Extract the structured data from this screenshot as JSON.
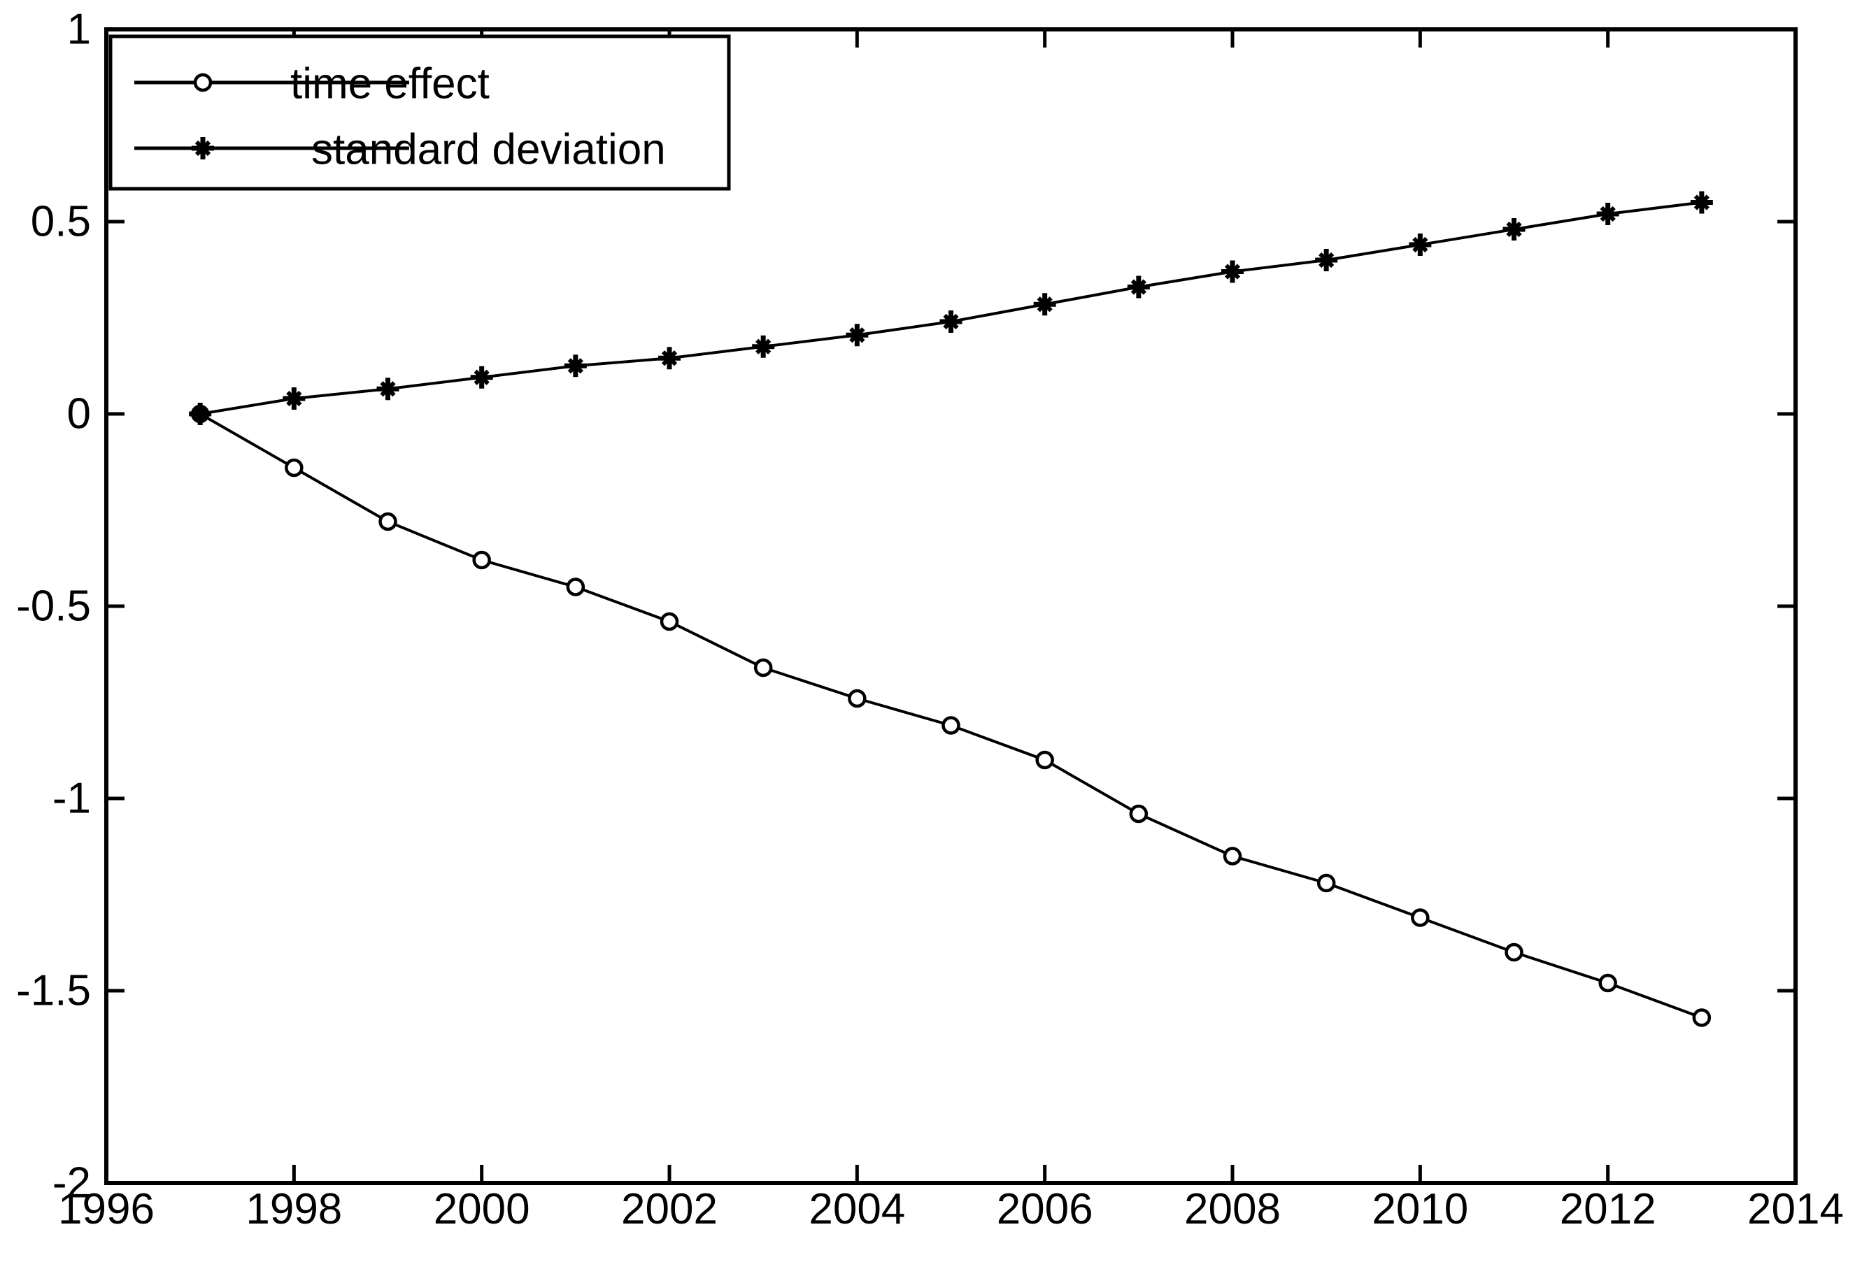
{
  "figure": {
    "background_color": "#ffffff",
    "axis_color": "#000000",
    "line_color": "#000000"
  },
  "chart_data": {
    "type": "line",
    "title": "",
    "xlabel": "",
    "ylabel": "",
    "grid": false,
    "legend_position": "top-left",
    "xlim": [
      1996,
      2014
    ],
    "ylim": [
      -2,
      1
    ],
    "xticks": [
      1996,
      1998,
      2000,
      2002,
      2004,
      2006,
      2008,
      2010,
      2012,
      2014
    ],
    "xtick_labels": [
      "1996",
      "1998",
      "2000",
      "2002",
      "2004",
      "2006",
      "2008",
      "2010",
      "2012",
      "2014"
    ],
    "yticks": [
      1,
      0.5,
      0,
      -0.5,
      -1,
      -1.5,
      -2
    ],
    "ytick_labels": [
      "1",
      "0.5",
      "0",
      "-0.5",
      "-1",
      "-1.5",
      "-2"
    ],
    "x": [
      1997,
      1998,
      1999,
      2000,
      2001,
      2002,
      2003,
      2004,
      2005,
      2006,
      2007,
      2008,
      2009,
      2010,
      2011,
      2012,
      2013
    ],
    "series": [
      {
        "name": "time effect",
        "marker": "circle",
        "values": [
          0,
          -0.14,
          -0.28,
          -0.38,
          -0.45,
          -0.54,
          -0.66,
          -0.74,
          -0.81,
          -0.9,
          -1.04,
          -1.15,
          -1.22,
          -1.31,
          -1.4,
          -1.48,
          -1.57
        ]
      },
      {
        "name": "standard deviation",
        "marker": "asterisk",
        "values": [
          0,
          0.04,
          0.065,
          0.095,
          0.125,
          0.145,
          0.175,
          0.205,
          0.24,
          0.285,
          0.33,
          0.37,
          0.4,
          0.44,
          0.48,
          0.52,
          0.55
        ]
      }
    ]
  },
  "legend": {
    "entries": [
      {
        "label": "time effect",
        "marker": "circle-marker-icon"
      },
      {
        "label": "standard deviation",
        "marker": "asterisk-marker-icon"
      }
    ]
  }
}
